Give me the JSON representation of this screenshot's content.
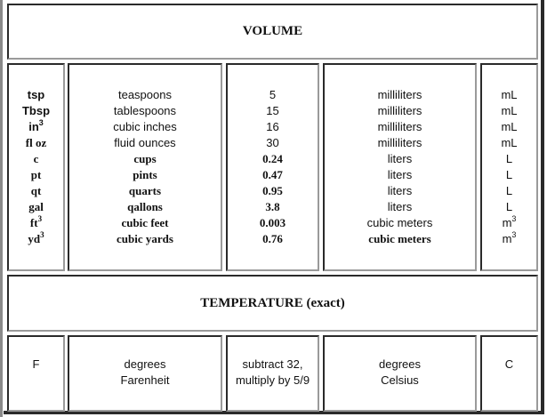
{
  "volume": {
    "title": "VOLUME",
    "abbr": [
      {
        "t": "tsp"
      },
      {
        "t": "Tbsp"
      },
      {
        "t": "in",
        "sup": "3"
      },
      {
        "t": "fl oz"
      },
      {
        "t": "c"
      },
      {
        "t": "pt"
      },
      {
        "t": "qt"
      },
      {
        "t": "gal"
      },
      {
        "t": "ft",
        "sup": "3"
      },
      {
        "t": "yd",
        "sup": "3"
      }
    ],
    "names": [
      "teaspoons",
      "tablespoons",
      "cubic inches",
      "fluid ounces",
      "cups",
      "pints",
      "quarts",
      "qallons",
      "cubic feet",
      "cubic yards"
    ],
    "factors": [
      "5",
      "15",
      "16",
      "30",
      "0.24",
      "0.47",
      "0.95",
      "3.8",
      "0.003",
      "0.76"
    ],
    "to_names": [
      "milliliters",
      "milliliters",
      "milliliters",
      "milliliters",
      "liters",
      "liters",
      "liters",
      "liters",
      "cubic meters",
      "cubic meters"
    ],
    "to_abbr": [
      {
        "t": "mL"
      },
      {
        "t": "mL"
      },
      {
        "t": "mL"
      },
      {
        "t": "mL"
      },
      {
        "t": "L"
      },
      {
        "t": "L"
      },
      {
        "t": "L"
      },
      {
        "t": "L"
      },
      {
        "t": "m",
        "sup": "3"
      },
      {
        "t": "m",
        "sup": "3"
      }
    ]
  },
  "temperature": {
    "title": "TEMPERATURE (exact)",
    "from_abbr": "F",
    "from_name_1": "degrees",
    "from_name_2": "Farenheit",
    "formula_1": "subtract 32,",
    "formula_2": "multiply by 5/9",
    "to_name_1": "degrees",
    "to_name_2": "Celsius",
    "to_abbr": "C"
  }
}
